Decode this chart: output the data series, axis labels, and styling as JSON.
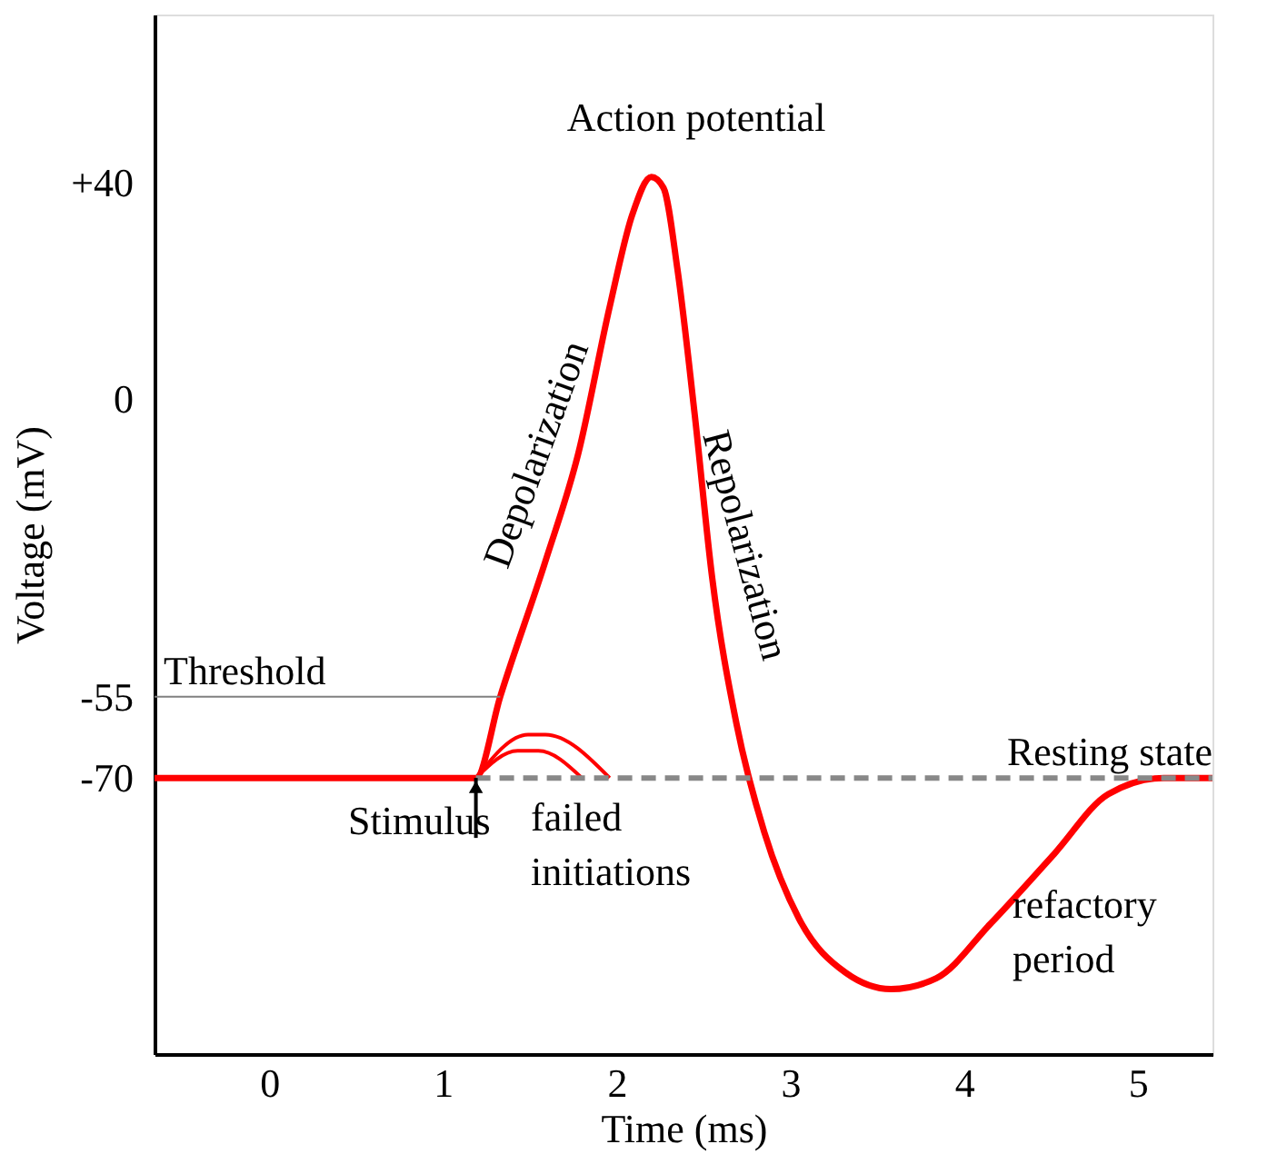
{
  "chart_data": {
    "type": "line",
    "xlabel": "Time (ms)",
    "ylabel": "Voltage (mV)",
    "xlim": [
      -0.66,
      5.43
    ],
    "ylim": [
      -121,
      71
    ],
    "xticks": [
      0,
      1,
      2,
      3,
      4,
      5
    ],
    "yticks": [
      {
        "value": 40,
        "label": "+40"
      },
      0,
      -55,
      -70
    ],
    "grid": false,
    "series": [
      {
        "color": "#ff0000",
        "line_style": "solid",
        "x": [
          -0.66,
          1.19,
          1.33,
          1.59,
          1.78,
          1.96,
          2.09,
          2.2,
          2.27,
          2.35,
          2.45,
          2.55,
          2.69,
          2.85,
          3.05,
          3.32,
          3.58,
          3.84,
          4.15,
          4.52,
          4.83,
          5.15,
          5.43
        ],
        "values": [
          -70,
          -70,
          -55,
          -30,
          -10,
          17,
          34,
          41,
          39,
          24,
          -3,
          -33,
          -60,
          -80,
          -96,
          -106,
          -109,
          -107,
          -97,
          -84,
          -73,
          -70,
          -70
        ]
      },
      {
        "color": "#ff0000",
        "line_style": "solid",
        "x": [
          1.19,
          1.49,
          1.59,
          1.96
        ],
        "values": [
          -70,
          -62,
          -62,
          -70
        ]
      },
      {
        "color": "#ff0000",
        "line_style": "solid",
        "x": [
          1.19,
          1.43,
          1.55,
          1.8
        ],
        "values": [
          -70,
          -65,
          -65,
          -70
        ]
      },
      {
        "name": "Threshold",
        "color": "#808080",
        "line_style": "solid",
        "x": [
          -0.66,
          1.33
        ],
        "values": [
          -55,
          -55
        ]
      },
      {
        "name": "Resting state",
        "color": "#888888",
        "line_style": "dashed",
        "x": [
          1.19,
          5.43
        ],
        "values": [
          -70,
          -70
        ]
      }
    ],
    "annotations": [
      "Action potential",
      "Depolarization",
      "Repolarization",
      {
        "text": "Stimulus",
        "x": 1.19,
        "y": -70
      },
      "failed initiations",
      "refactory period"
    ]
  }
}
